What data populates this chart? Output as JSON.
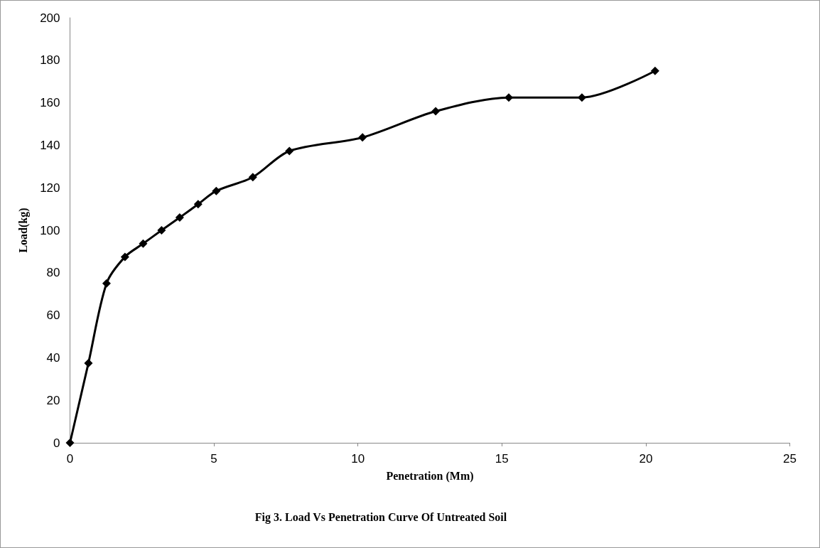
{
  "chart_data": {
    "type": "line",
    "title": "Fig 3. Load Vs Penetration Curve Of Untreated Soil",
    "xlabel": "Penetration (Mm)",
    "ylabel": "Load(kg)",
    "x": [
      0,
      0.64,
      1.27,
      1.91,
      2.54,
      3.18,
      3.81,
      4.45,
      5.08,
      6.35,
      7.62,
      10.16,
      12.7,
      15.24,
      17.78,
      20.32
    ],
    "series": [
      {
        "color": "#000000",
        "values": [
          0,
          37.5,
          75,
          87.5,
          93.7,
          100,
          106,
          112.3,
          118.5,
          125,
          137.3,
          143.7,
          156,
          162.5,
          162.5,
          175
        ]
      }
    ],
    "xlim": [
      0,
      25
    ],
    "xticks": [
      0,
      5,
      10,
      15,
      20,
      25
    ],
    "ylim": [
      0,
      200
    ],
    "yticks": [
      0,
      20,
      40,
      60,
      80,
      100,
      120,
      140,
      160,
      180,
      200
    ],
    "grid": false,
    "marker": "diamond",
    "line_style": "solid"
  }
}
